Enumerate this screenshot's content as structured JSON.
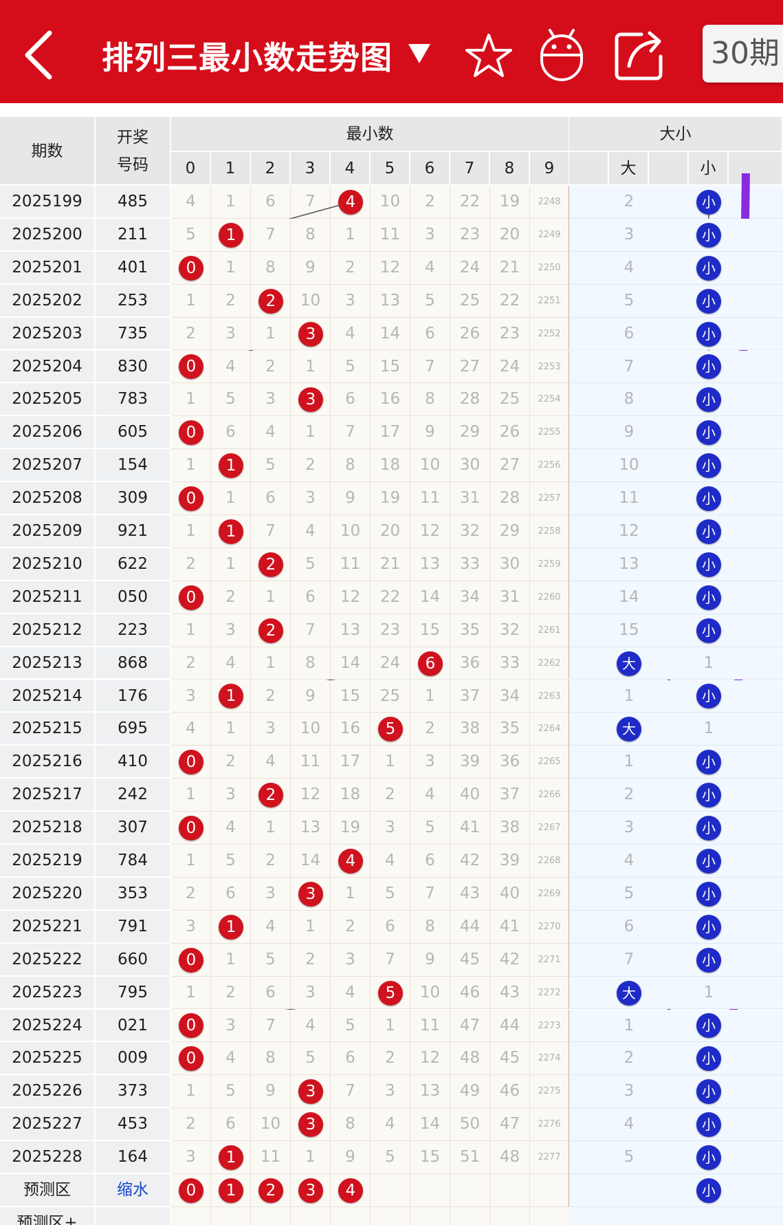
{
  "header": {
    "title": "排列三最小数走势图",
    "period_button": "30期",
    "bg_color": "#d50d1a",
    "icons": [
      "back-icon",
      "dropdown-icon",
      "star-icon",
      "robot-icon",
      "share-icon"
    ]
  },
  "table": {
    "col_issue": "期数",
    "col_draw_line1": "开奖",
    "col_draw_line2": "号码",
    "group_min": "最小数",
    "group_size": "大小",
    "digit_headers": [
      "0",
      "1",
      "2",
      "3",
      "4",
      "5",
      "6",
      "7",
      "8",
      "9"
    ],
    "size_big_label": "大",
    "size_small_label": "小",
    "rows": [
      {
        "issue": "2025199",
        "draw": "485",
        "cells": [
          "4",
          "1",
          "6",
          "7",
          "4",
          "10",
          "2",
          "22",
          "19",
          "2248"
        ],
        "big": "2",
        "small": "小",
        "hit": 4,
        "is_big": false
      },
      {
        "issue": "2025200",
        "draw": "211",
        "cells": [
          "5",
          "1",
          "7",
          "8",
          "1",
          "11",
          "3",
          "23",
          "20",
          "2249"
        ],
        "big": "3",
        "small": "小",
        "hit": 1,
        "is_big": false
      },
      {
        "issue": "2025201",
        "draw": "401",
        "cells": [
          "0",
          "1",
          "8",
          "9",
          "2",
          "12",
          "4",
          "24",
          "21",
          "2250"
        ],
        "big": "4",
        "small": "小",
        "hit": 0,
        "is_big": false
      },
      {
        "issue": "2025202",
        "draw": "253",
        "cells": [
          "1",
          "2",
          "2",
          "10",
          "3",
          "13",
          "5",
          "25",
          "22",
          "2251"
        ],
        "big": "5",
        "small": "小",
        "hit": 2,
        "is_big": false
      },
      {
        "issue": "2025203",
        "draw": "735",
        "cells": [
          "2",
          "3",
          "1",
          "3",
          "4",
          "14",
          "6",
          "26",
          "23",
          "2252"
        ],
        "big": "6",
        "small": "小",
        "hit": 3,
        "is_big": false
      },
      {
        "issue": "2025204",
        "draw": "830",
        "cells": [
          "0",
          "4",
          "2",
          "1",
          "5",
          "15",
          "7",
          "27",
          "24",
          "2253"
        ],
        "big": "7",
        "small": "小",
        "hit": 0,
        "is_big": false
      },
      {
        "issue": "2025205",
        "draw": "783",
        "cells": [
          "1",
          "5",
          "3",
          "3",
          "6",
          "16",
          "8",
          "28",
          "25",
          "2254"
        ],
        "big": "8",
        "small": "小",
        "hit": 3,
        "is_big": false
      },
      {
        "issue": "2025206",
        "draw": "605",
        "cells": [
          "0",
          "6",
          "4",
          "1",
          "7",
          "17",
          "9",
          "29",
          "26",
          "2255"
        ],
        "big": "9",
        "small": "小",
        "hit": 0,
        "is_big": false
      },
      {
        "issue": "2025207",
        "draw": "154",
        "cells": [
          "1",
          "1",
          "5",
          "2",
          "8",
          "18",
          "10",
          "30",
          "27",
          "2256"
        ],
        "big": "10",
        "small": "小",
        "hit": 1,
        "is_big": false
      },
      {
        "issue": "2025208",
        "draw": "309",
        "cells": [
          "0",
          "1",
          "6",
          "3",
          "9",
          "19",
          "11",
          "31",
          "28",
          "2257"
        ],
        "big": "11",
        "small": "小",
        "hit": 0,
        "is_big": false
      },
      {
        "issue": "2025209",
        "draw": "921",
        "cells": [
          "1",
          "1",
          "7",
          "4",
          "10",
          "20",
          "12",
          "32",
          "29",
          "2258"
        ],
        "big": "12",
        "small": "小",
        "hit": 1,
        "is_big": false
      },
      {
        "issue": "2025210",
        "draw": "622",
        "cells": [
          "2",
          "1",
          "2",
          "5",
          "11",
          "21",
          "13",
          "33",
          "30",
          "2259"
        ],
        "big": "13",
        "small": "小",
        "hit": 2,
        "is_big": false
      },
      {
        "issue": "2025211",
        "draw": "050",
        "cells": [
          "0",
          "2",
          "1",
          "6",
          "12",
          "22",
          "14",
          "34",
          "31",
          "2260"
        ],
        "big": "14",
        "small": "小",
        "hit": 0,
        "is_big": false
      },
      {
        "issue": "2025212",
        "draw": "223",
        "cells": [
          "1",
          "3",
          "2",
          "7",
          "13",
          "23",
          "15",
          "35",
          "32",
          "2261"
        ],
        "big": "15",
        "small": "小",
        "hit": 2,
        "is_big": false
      },
      {
        "issue": "2025213",
        "draw": "868",
        "cells": [
          "2",
          "4",
          "1",
          "8",
          "14",
          "24",
          "6",
          "36",
          "33",
          "2262"
        ],
        "big": "大",
        "small": "1",
        "hit": 6,
        "is_big": true
      },
      {
        "issue": "2025214",
        "draw": "176",
        "cells": [
          "3",
          "1",
          "2",
          "9",
          "15",
          "25",
          "1",
          "37",
          "34",
          "2263"
        ],
        "big": "1",
        "small": "小",
        "hit": 1,
        "is_big": false
      },
      {
        "issue": "2025215",
        "draw": "695",
        "cells": [
          "4",
          "1",
          "3",
          "10",
          "16",
          "5",
          "2",
          "38",
          "35",
          "2264"
        ],
        "big": "大",
        "small": "1",
        "hit": 5,
        "is_big": true
      },
      {
        "issue": "2025216",
        "draw": "410",
        "cells": [
          "0",
          "2",
          "4",
          "11",
          "17",
          "1",
          "3",
          "39",
          "36",
          "2265"
        ],
        "big": "1",
        "small": "小",
        "hit": 0,
        "is_big": false
      },
      {
        "issue": "2025217",
        "draw": "242",
        "cells": [
          "1",
          "3",
          "2",
          "12",
          "18",
          "2",
          "4",
          "40",
          "37",
          "2266"
        ],
        "big": "2",
        "small": "小",
        "hit": 2,
        "is_big": false
      },
      {
        "issue": "2025218",
        "draw": "307",
        "cells": [
          "0",
          "4",
          "1",
          "13",
          "19",
          "3",
          "5",
          "41",
          "38",
          "2267"
        ],
        "big": "3",
        "small": "小",
        "hit": 0,
        "is_big": false
      },
      {
        "issue": "2025219",
        "draw": "784",
        "cells": [
          "1",
          "5",
          "2",
          "14",
          "4",
          "4",
          "6",
          "42",
          "39",
          "2268"
        ],
        "big": "4",
        "small": "小",
        "hit": 4,
        "is_big": false
      },
      {
        "issue": "2025220",
        "draw": "353",
        "cells": [
          "2",
          "6",
          "3",
          "3",
          "1",
          "5",
          "7",
          "43",
          "40",
          "2269"
        ],
        "big": "5",
        "small": "小",
        "hit": 3,
        "is_big": false
      },
      {
        "issue": "2025221",
        "draw": "791",
        "cells": [
          "3",
          "1",
          "4",
          "1",
          "2",
          "6",
          "8",
          "44",
          "41",
          "2270"
        ],
        "big": "6",
        "small": "小",
        "hit": 1,
        "is_big": false
      },
      {
        "issue": "2025222",
        "draw": "660",
        "cells": [
          "0",
          "1",
          "5",
          "2",
          "3",
          "7",
          "9",
          "45",
          "42",
          "2271"
        ],
        "big": "7",
        "small": "小",
        "hit": 0,
        "is_big": false
      },
      {
        "issue": "2025223",
        "draw": "795",
        "cells": [
          "1",
          "2",
          "6",
          "3",
          "4",
          "5",
          "10",
          "46",
          "43",
          "2272"
        ],
        "big": "大",
        "small": "1",
        "hit": 5,
        "is_big": true
      },
      {
        "issue": "2025224",
        "draw": "021",
        "cells": [
          "0",
          "3",
          "7",
          "4",
          "5",
          "1",
          "11",
          "47",
          "44",
          "2273"
        ],
        "big": "1",
        "small": "小",
        "hit": 0,
        "is_big": false
      },
      {
        "issue": "2025225",
        "draw": "009",
        "cells": [
          "0",
          "4",
          "8",
          "5",
          "6",
          "2",
          "12",
          "48",
          "45",
          "2274"
        ],
        "big": "2",
        "small": "小",
        "hit": 0,
        "is_big": false
      },
      {
        "issue": "2025226",
        "draw": "373",
        "cells": [
          "1",
          "5",
          "9",
          "3",
          "7",
          "3",
          "13",
          "49",
          "46",
          "2275"
        ],
        "big": "3",
        "small": "小",
        "hit": 3,
        "is_big": false
      },
      {
        "issue": "2025227",
        "draw": "453",
        "cells": [
          "2",
          "6",
          "10",
          "3",
          "8",
          "4",
          "14",
          "50",
          "47",
          "2276"
        ],
        "big": "4",
        "small": "小",
        "hit": 3,
        "is_big": false
      },
      {
        "issue": "2025228",
        "draw": "164",
        "cells": [
          "3",
          "1",
          "11",
          "1",
          "9",
          "5",
          "15",
          "51",
          "48",
          "2277"
        ],
        "big": "5",
        "small": "小",
        "hit": 1,
        "is_big": false
      }
    ],
    "prediction": {
      "label": "预测区",
      "draw": "缩水",
      "digits": [
        "0",
        "1",
        "2",
        "3",
        "4"
      ],
      "small": "小",
      "from_digit": 1
    },
    "prediction_plus_label": "预测区+",
    "colors": {
      "hit_ball": "#d0121e",
      "size_ball": "#1f2bc7",
      "trend_arrow": "#8a2be2"
    }
  }
}
